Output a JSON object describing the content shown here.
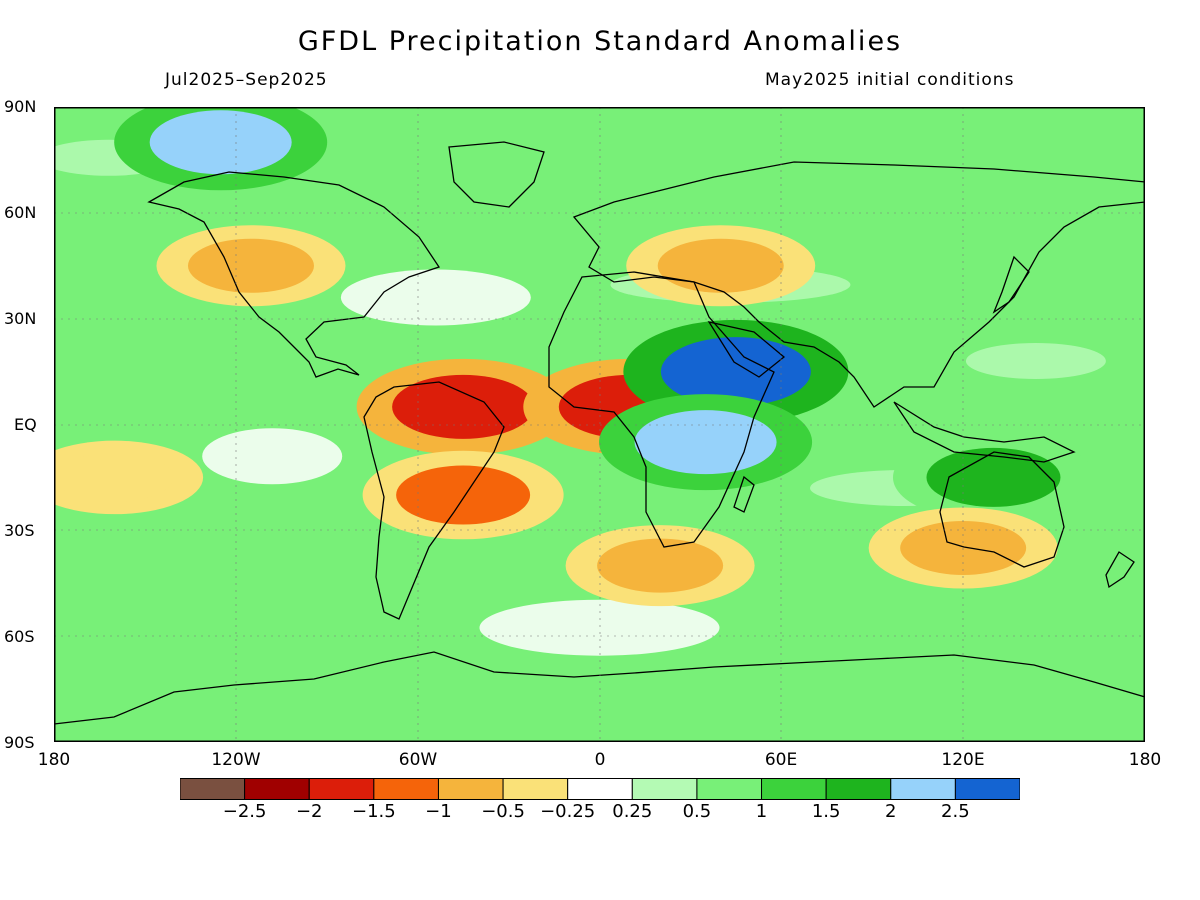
{
  "header": {
    "title": "GFDL Precipitation Standard Anomalies",
    "period": "Jul2025–Sep2025",
    "initial_conditions": "May2025 initial conditions"
  },
  "axes": {
    "lat_labels": [
      "90N",
      "60N",
      "30N",
      "EQ",
      "30S",
      "60S",
      "90S"
    ],
    "lon_labels": [
      "180",
      "120W",
      "60W",
      "0",
      "60E",
      "120E",
      "180"
    ]
  },
  "colorbar": {
    "colors": [
      "#7a5040",
      "#a00000",
      "#dc1e0a",
      "#f5640a",
      "#f5b43c",
      "#fae178",
      "#ffffff",
      "#b4fab4",
      "#78f078",
      "#3cd23c",
      "#1eb41e",
      "#96d2fa",
      "#1464d2"
    ],
    "labels": [
      "−2.5",
      "−2",
      "−1.5",
      "−1",
      "−0.5",
      "−0.25",
      "0.25",
      "0.5",
      "1",
      "1.5",
      "2",
      "2.5"
    ]
  },
  "anomaly_regions": [
    {
      "lon": -45,
      "lat": 5,
      "value": -2
    },
    {
      "lon": 10,
      "lat": 5,
      "value": -2
    },
    {
      "lon": -45,
      "lat": -20,
      "value": -1.5
    },
    {
      "lon": 40,
      "lat": 45,
      "value": -1
    },
    {
      "lon": -115,
      "lat": 45,
      "value": -1
    },
    {
      "lon": 45,
      "lat": 15,
      "value": 2.5
    },
    {
      "lon": 35,
      "lat": -5,
      "value": 2
    },
    {
      "lon": -125,
      "lat": 80,
      "value": 2
    },
    {
      "lon": 130,
      "lat": -15,
      "value": 1.5
    },
    {
      "lon": 20,
      "lat": -40,
      "value": -1
    },
    {
      "lon": 120,
      "lat": -35,
      "value": -1
    },
    {
      "lon": -160,
      "lat": -15,
      "value": -0.5
    }
  ]
}
